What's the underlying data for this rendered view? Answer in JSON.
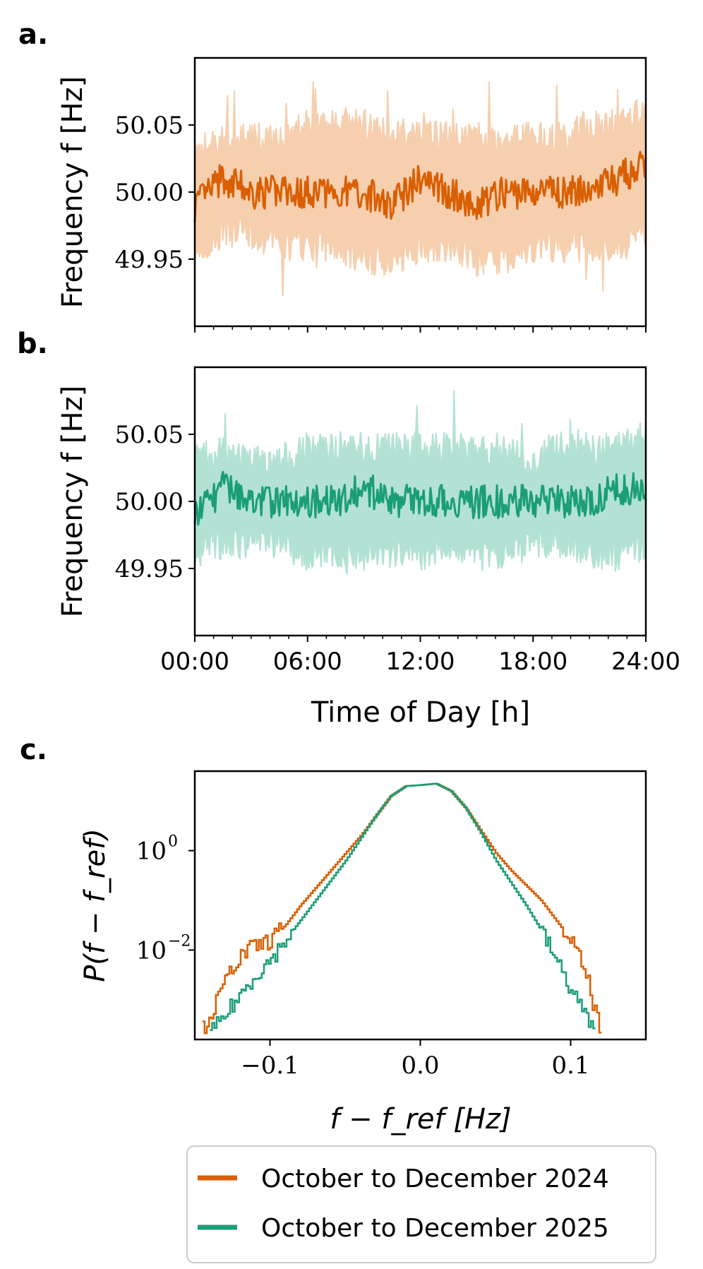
{
  "colors": {
    "orange": "#d95f02",
    "orange_band": "#f6cfae",
    "green": "#1b9e77",
    "green_band": "#b3e2d4"
  },
  "panel_labels": [
    "a.",
    "b.",
    "c."
  ],
  "chart_data": [
    {
      "panel": "a.",
      "type": "line",
      "ylabel": "Frequency f [Hz]",
      "ylim": [
        49.9,
        50.1
      ],
      "yticks": [
        49.95,
        50.0,
        50.05
      ],
      "ytick_labels": [
        "49.95",
        "50.00",
        "50.05"
      ],
      "xlim": [
        0,
        24
      ],
      "series": [
        {
          "name": "October to December 2024",
          "color": "#d95f02",
          "band_color": "#f6cfae"
        }
      ],
      "x": [
        0,
        1.5,
        3,
        4.5,
        6,
        7.5,
        9,
        10.5,
        12,
        13.5,
        15,
        16.5,
        18,
        19.5,
        21,
        22.5,
        24
      ],
      "mean": [
        49.99,
        50.01,
        50.0,
        50.0,
        50.0,
        50.0,
        50.0,
        49.99,
        50.01,
        50.0,
        49.99,
        50.0,
        50.0,
        50.0,
        50.0,
        50.01,
        50.02
      ],
      "upper": [
        50.03,
        50.04,
        50.04,
        50.04,
        50.05,
        50.05,
        50.05,
        50.04,
        50.05,
        50.04,
        50.04,
        50.04,
        50.04,
        50.04,
        50.05,
        50.05,
        50.06
      ],
      "lower": [
        49.95,
        49.97,
        49.97,
        49.96,
        49.96,
        49.96,
        49.95,
        49.95,
        49.96,
        49.96,
        49.95,
        49.95,
        49.96,
        49.96,
        49.96,
        49.96,
        49.97
      ]
    },
    {
      "panel": "b.",
      "type": "line",
      "ylabel": "Frequency f [Hz]",
      "xlabel": "Time of Day [h]",
      "ylim": [
        49.9,
        50.1
      ],
      "yticks": [
        49.95,
        50.0,
        50.05
      ],
      "ytick_labels": [
        "49.95",
        "50.00",
        "50.05"
      ],
      "xlim": [
        0,
        24
      ],
      "xticks": [
        0,
        6,
        12,
        18,
        24
      ],
      "xtick_labels": [
        "00:00",
        "06:00",
        "12:00",
        "18:00",
        "24:00"
      ],
      "series": [
        {
          "name": "October to December 2025",
          "color": "#1b9e77",
          "band_color": "#b3e2d4"
        }
      ],
      "x": [
        0,
        1.5,
        3,
        4.5,
        6,
        7.5,
        9,
        10.5,
        12,
        13.5,
        15,
        16.5,
        18,
        19.5,
        21,
        22.5,
        24
      ],
      "mean": [
        49.99,
        50.01,
        50.0,
        50.0,
        50.0,
        50.0,
        50.01,
        50.0,
        50.0,
        50.0,
        50.0,
        50.0,
        50.0,
        50.0,
        50.0,
        50.01,
        50.01
      ],
      "upper": [
        50.03,
        50.04,
        50.03,
        50.03,
        50.04,
        50.04,
        50.04,
        50.04,
        50.04,
        50.04,
        50.04,
        50.04,
        50.03,
        50.04,
        50.04,
        50.04,
        50.05
      ],
      "lower": [
        49.96,
        49.97,
        49.97,
        49.97,
        49.96,
        49.96,
        49.96,
        49.96,
        49.96,
        49.97,
        49.96,
        49.96,
        49.97,
        49.97,
        49.96,
        49.96,
        49.97
      ]
    },
    {
      "panel": "c.",
      "type": "line",
      "ylabel": "P(f − f_ref)",
      "xlabel": "f − f_ref [Hz]",
      "yscale": "log",
      "xlim": [
        -0.15,
        0.15
      ],
      "ylim_log10": [
        -3.8,
        1.6
      ],
      "xticks": [
        -0.1,
        0.0,
        0.1
      ],
      "xtick_labels": [
        "−0.1",
        "0.0",
        "0.1"
      ],
      "yticks_log10": [
        -2,
        0
      ],
      "ytick_labels": [
        "10",
        "10"
      ],
      "ytick_exponents": [
        "−2",
        "0"
      ],
      "series": [
        {
          "name": "October to December 2024",
          "color": "#d95f02",
          "x": [
            -0.145,
            -0.135,
            -0.125,
            -0.115,
            -0.1,
            -0.09,
            -0.08,
            -0.07,
            -0.06,
            -0.05,
            -0.04,
            -0.03,
            -0.02,
            -0.01,
            0.0,
            0.01,
            0.02,
            0.03,
            0.04,
            0.05,
            0.06,
            0.07,
            0.08,
            0.09,
            0.1,
            0.11,
            0.12
          ],
          "log10_y": [
            -3.6,
            -3.0,
            -2.3,
            -2.0,
            -1.8,
            -1.5,
            -1.1,
            -0.75,
            -0.4,
            -0.05,
            0.3,
            0.7,
            1.1,
            1.3,
            1.32,
            1.35,
            1.2,
            0.85,
            0.4,
            -0.05,
            -0.4,
            -0.7,
            -1.0,
            -1.4,
            -1.8,
            -2.5,
            -3.7
          ]
        },
        {
          "name": "October to December 2025",
          "color": "#1b9e77",
          "x": [
            -0.14,
            -0.13,
            -0.12,
            -0.11,
            -0.1,
            -0.09,
            -0.08,
            -0.07,
            -0.06,
            -0.05,
            -0.04,
            -0.03,
            -0.02,
            -0.01,
            0.0,
            0.01,
            0.02,
            0.03,
            0.04,
            0.05,
            0.06,
            0.07,
            0.08,
            0.09,
            0.1,
            0.11,
            0.115
          ],
          "log10_y": [
            -3.7,
            -3.3,
            -2.9,
            -2.5,
            -2.2,
            -1.8,
            -1.4,
            -1.0,
            -0.6,
            -0.2,
            0.25,
            0.7,
            1.1,
            1.3,
            1.32,
            1.35,
            1.2,
            0.85,
            0.35,
            -0.2,
            -0.65,
            -1.1,
            -1.6,
            -2.2,
            -2.8,
            -3.3,
            -3.7
          ]
        }
      ]
    }
  ],
  "legend": {
    "entries": [
      {
        "label": "October to December 2024",
        "color": "#d95f02"
      },
      {
        "label": "October to December 2025",
        "color": "#1b9e77"
      }
    ]
  }
}
